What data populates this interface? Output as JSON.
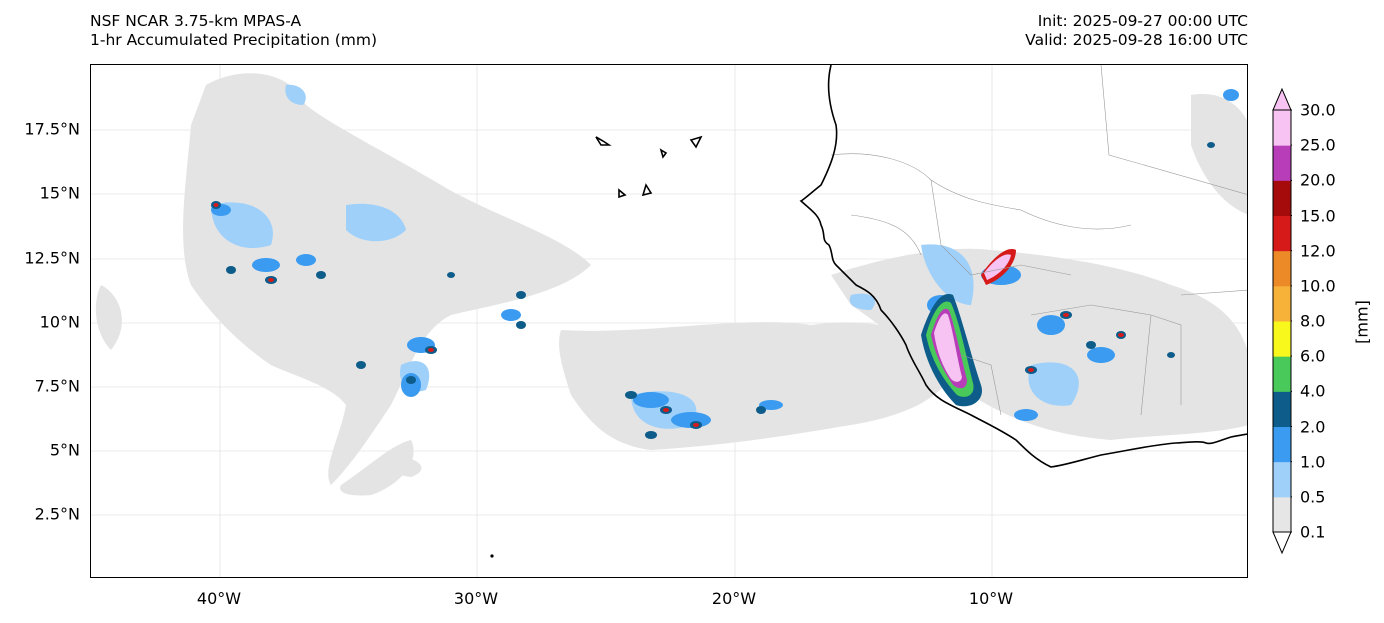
{
  "header": {
    "title_line1": "NSF NCAR 3.75-km MPAS-A",
    "title_line2": "1-hr Accumulated Precipitation (mm)",
    "init_text": "Init: 2025-09-27 00:00 UTC",
    "valid_text": "Valid: 2025-09-28 16:00 UTC"
  },
  "map": {
    "lon_range": [
      -45,
      0
    ],
    "lat_range": [
      0,
      20
    ],
    "y_ticks": [
      "17.5°N",
      "15°N",
      "12.5°N",
      "10°N",
      "7.5°N",
      "5°N",
      "2.5°N"
    ],
    "x_ticks": [
      "40°W",
      "30°W",
      "20°W",
      "10°W"
    ],
    "grid": true,
    "features": [
      "west-african-coastline",
      "country-borders",
      "cape-verde-islands"
    ]
  },
  "colorbar": {
    "unit": "[mm]",
    "levels": [
      "0.1",
      "0.5",
      "1.0",
      "2.0",
      "4.0",
      "6.0",
      "8.0",
      "10.0",
      "12.0",
      "15.0",
      "20.0",
      "25.0",
      "30.0"
    ],
    "colors": [
      "#e6e6e6",
      "#9fd0fa",
      "#3a9bf0",
      "#0d5c8a",
      "#49c95a",
      "#f8f81c",
      "#f7b23a",
      "#ec8a28",
      "#d61a1a",
      "#a50b0b",
      "#b83db8",
      "#f6c3f2"
    ],
    "extend": "both"
  }
}
